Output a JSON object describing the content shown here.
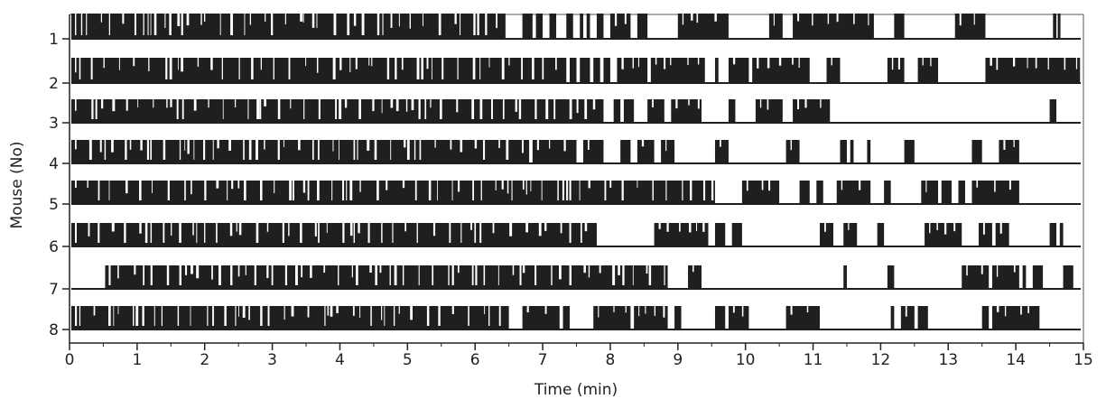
{
  "chart_data": {
    "type": "raster",
    "xlabel": "Time (min)",
    "ylabel": "Mouse (No)",
    "xlim": [
      0,
      15
    ],
    "x_ticks": [
      "0",
      "1",
      "2",
      "3",
      "4",
      "5",
      "6",
      "7",
      "8",
      "9",
      "10",
      "11",
      "12",
      "13",
      "14",
      "15"
    ],
    "y_ticks": [
      "1",
      "2",
      "3",
      "4",
      "5",
      "6",
      "7",
      "8"
    ],
    "grid": false,
    "colors": {
      "bars": "#1f1f1f",
      "axis": "#222222",
      "background": "#ffffff"
    },
    "series": [
      {
        "y": "1",
        "dense_until": 6.45,
        "blocks": [
          [
            6.7,
            6.85
          ],
          [
            6.9,
            7.0
          ],
          [
            7.1,
            7.2
          ],
          [
            7.35,
            7.45
          ],
          [
            7.55,
            7.6
          ],
          [
            7.65,
            7.7
          ],
          [
            7.8,
            7.9
          ],
          [
            8.0,
            8.3
          ],
          [
            8.4,
            8.55
          ],
          [
            9.0,
            9.75
          ],
          [
            10.35,
            10.55
          ],
          [
            10.7,
            11.9
          ],
          [
            12.2,
            12.35
          ],
          [
            13.1,
            13.55
          ],
          [
            14.55,
            14.6
          ],
          [
            14.62,
            14.66
          ]
        ]
      },
      {
        "y": "2",
        "dense_until": 7.35,
        "blocks": [
          [
            7.4,
            7.5
          ],
          [
            7.55,
            7.7
          ],
          [
            7.75,
            7.85
          ],
          [
            7.9,
            8.0
          ],
          [
            8.1,
            8.55
          ],
          [
            8.6,
            9.4
          ],
          [
            9.55,
            9.6
          ],
          [
            9.75,
            10.05
          ],
          [
            10.1,
            10.95
          ],
          [
            11.2,
            11.4
          ],
          [
            12.1,
            12.35
          ],
          [
            12.55,
            12.85
          ],
          [
            13.55,
            14.95
          ]
        ]
      },
      {
        "y": "3",
        "dense_until": 7.9,
        "blocks": [
          [
            8.05,
            8.15
          ],
          [
            8.2,
            8.35
          ],
          [
            8.55,
            8.8
          ],
          [
            8.9,
            9.35
          ],
          [
            9.75,
            9.85
          ],
          [
            10.15,
            10.55
          ],
          [
            10.7,
            11.25
          ],
          [
            14.5,
            14.6
          ]
        ]
      },
      {
        "y": "4",
        "dense_until": 6.8,
        "blocks": [
          [
            6.85,
            7.5
          ],
          [
            7.6,
            7.9
          ],
          [
            8.15,
            8.3
          ],
          [
            8.4,
            8.65
          ],
          [
            8.75,
            8.95
          ],
          [
            9.55,
            9.75
          ],
          [
            10.6,
            10.8
          ],
          [
            11.4,
            11.5
          ],
          [
            11.55,
            11.6
          ],
          [
            11.8,
            11.85
          ],
          [
            12.35,
            12.5
          ],
          [
            13.35,
            13.5
          ],
          [
            13.75,
            14.05
          ]
        ]
      },
      {
        "y": "5",
        "dense_until": 9.55,
        "blocks": [
          [
            9.95,
            10.5
          ],
          [
            10.8,
            10.95
          ],
          [
            11.05,
            11.15
          ],
          [
            11.35,
            11.85
          ],
          [
            12.05,
            12.15
          ],
          [
            12.6,
            12.85
          ],
          [
            12.9,
            13.05
          ],
          [
            13.15,
            13.25
          ],
          [
            13.35,
            14.05
          ]
        ]
      },
      {
        "y": "6",
        "dense_until": 7.8,
        "blocks": [
          [
            8.65,
            9.45
          ],
          [
            9.55,
            9.7
          ],
          [
            9.8,
            9.95
          ],
          [
            11.1,
            11.3
          ],
          [
            11.45,
            11.65
          ],
          [
            11.95,
            12.05
          ],
          [
            12.65,
            13.2
          ],
          [
            13.45,
            13.65
          ],
          [
            13.7,
            13.9
          ],
          [
            14.5,
            14.6
          ],
          [
            14.65,
            14.7
          ]
        ]
      },
      {
        "y": "7",
        "dense_until": 8.85,
        "dense_from": 0.5,
        "blocks": [
          [
            9.15,
            9.35
          ],
          [
            11.45,
            11.5
          ],
          [
            12.1,
            12.2
          ],
          [
            13.2,
            13.6
          ],
          [
            13.65,
            14.05
          ],
          [
            14.1,
            14.15
          ],
          [
            14.25,
            14.4
          ],
          [
            14.7,
            14.85
          ]
        ]
      },
      {
        "y": "8",
        "dense_until": 6.5,
        "blocks": [
          [
            6.7,
            7.25
          ],
          [
            7.3,
            7.4
          ],
          [
            7.75,
            8.3
          ],
          [
            8.35,
            8.85
          ],
          [
            8.95,
            9.05
          ],
          [
            9.55,
            9.7
          ],
          [
            9.75,
            10.05
          ],
          [
            10.6,
            11.1
          ],
          [
            12.15,
            12.2
          ],
          [
            12.3,
            12.5
          ],
          [
            12.55,
            12.7
          ],
          [
            13.5,
            13.6
          ],
          [
            13.65,
            14.35
          ]
        ]
      }
    ]
  }
}
